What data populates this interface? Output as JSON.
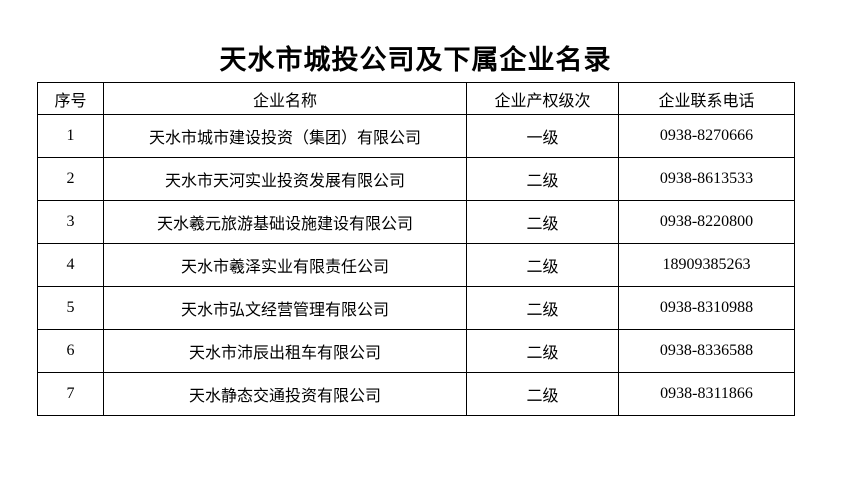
{
  "title": "天水市城投公司及下属企业名录",
  "table": {
    "headers": [
      "序号",
      "企业名称",
      "企业产权级次",
      "企业联系电话"
    ],
    "rows": [
      {
        "no": "1",
        "name": "天水市城市建设投资（集团）有限公司",
        "level": "一级",
        "phone": "0938-8270666"
      },
      {
        "no": "2",
        "name": "天水市天河实业投资发展有限公司",
        "level": "二级",
        "phone": "0938-8613533"
      },
      {
        "no": "3",
        "name": "天水羲元旅游基础设施建设有限公司",
        "level": "二级",
        "phone": "0938-8220800"
      },
      {
        "no": "4",
        "name": "天水市羲泽实业有限责任公司",
        "level": "二级",
        "phone": "18909385263"
      },
      {
        "no": "5",
        "name": "天水市弘文经营管理有限公司",
        "level": "二级",
        "phone": "0938-8310988"
      },
      {
        "no": "6",
        "name": "天水市沛辰出租车有限公司",
        "level": "二级",
        "phone": "0938-8336588"
      },
      {
        "no": "7",
        "name": "天水静态交通投资有限公司",
        "level": "二级",
        "phone": "0938-8311866"
      }
    ]
  },
  "colors": {
    "text": "#000000",
    "border": "#000000",
    "background": "#ffffff"
  }
}
